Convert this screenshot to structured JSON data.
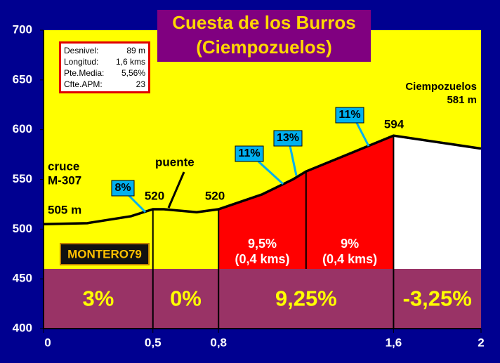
{
  "chart_data": {
    "type": "area",
    "title": [
      "Cuesta de los Burros",
      "(Ciempozuelos)"
    ],
    "x": [
      0,
      0.2,
      0.4,
      0.5,
      0.55,
      0.7,
      0.8,
      1.0,
      1.14,
      1.2,
      1.6,
      2
    ],
    "values": [
      505,
      506,
      513,
      520,
      520,
      517,
      520,
      535,
      550,
      558,
      594,
      581
    ],
    "color": "#000000",
    "xlim": [
      0,
      2
    ],
    "ylim": [
      400,
      700
    ],
    "yticks": [
      400,
      450,
      500,
      550,
      600,
      650,
      700
    ],
    "xticks": [
      0,
      {
        "value": 0.5,
        "label": "0,5"
      },
      {
        "value": 0.8,
        "label": "0,8"
      },
      {
        "value": 1.6,
        "label": "1,6"
      },
      2
    ],
    "segments": [
      {
        "start": 0,
        "end": 0.5,
        "color": "#ffff00",
        "grade": "3%"
      },
      {
        "start": 0.5,
        "end": 0.8,
        "color": "#ffff00",
        "grade": "0%"
      },
      {
        "start": 0.8,
        "end": 1.6,
        "color": "#ff0000",
        "grade": "9,25%"
      },
      {
        "start": 1.6,
        "end": 2,
        "color": "#ffffff",
        "grade": "-3,25%"
      }
    ],
    "sections": [
      {
        "start": 0.8,
        "end": 1.2,
        "grade": "9,5%",
        "length": "(0,4 kms)"
      },
      {
        "start": 1.2,
        "end": 1.6,
        "grade": "9%",
        "length": "(0,4 kms)"
      }
    ],
    "callouts": [
      "8%",
      "11%",
      "13%",
      "11%"
    ],
    "labels": {
      "start": [
        "cruce",
        "M-307",
        "505 m"
      ],
      "bridge": "puente",
      "bridge_elev": "520",
      "mid_elev": "520",
      "top_elev": "594",
      "end": [
        "Ciempozuelos",
        "581 m"
      ]
    },
    "info": [
      [
        "Desnivel:",
        "89 m"
      ],
      [
        "Longitud:",
        "1,6 kms"
      ],
      [
        "Pte.Media:",
        "5,56%"
      ],
      [
        "Cfte.APM:",
        "23"
      ]
    ],
    "author": "MONTERO79"
  }
}
